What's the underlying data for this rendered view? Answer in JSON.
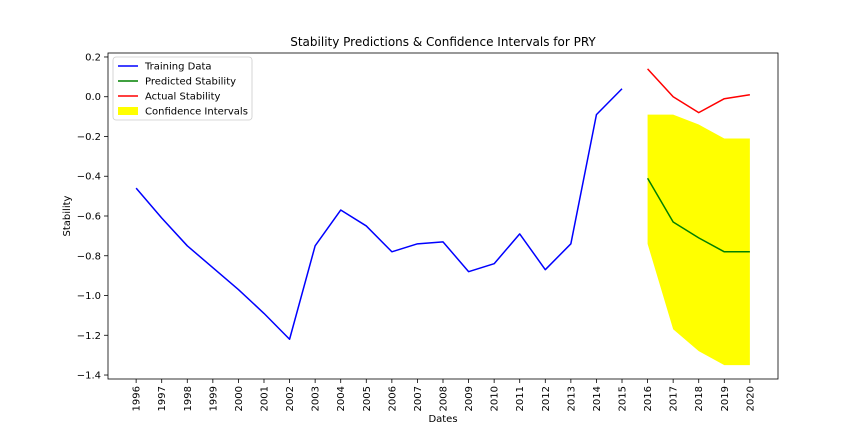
{
  "chart_data": {
    "type": "line",
    "title": "Stability Predictions & Confidence Intervals for PRY",
    "xlabel": "Dates",
    "ylabel": "Stability",
    "xlim": [
      1994.9,
      2021.1
    ],
    "ylim": [
      -1.42,
      0.22
    ],
    "x_ticks": [
      1996,
      1997,
      1998,
      1999,
      2000,
      2001,
      2002,
      2003,
      2004,
      2005,
      2006,
      2007,
      2008,
      2009,
      2010,
      2011,
      2012,
      2013,
      2014,
      2015,
      2016,
      2017,
      2018,
      2019,
      2020
    ],
    "y_ticks": [
      0.2,
      0.0,
      -0.2,
      -0.4,
      -0.6,
      -0.8,
      -1.0,
      -1.2,
      -1.4
    ],
    "y_tick_labels": [
      "0.2",
      "0.0",
      "−0.2",
      "−0.4",
      "−0.6",
      "−0.8",
      "−1.0",
      "−1.2",
      "−1.4"
    ],
    "grid": false,
    "legend_position": "upper-left",
    "series": [
      {
        "name": "Training Data",
        "color": "#0000ff",
        "x": [
          1996,
          1997,
          1998,
          1999,
          2000,
          2001,
          2002,
          2003,
          2004,
          2005,
          2006,
          2007,
          2008,
          2009,
          2010,
          2011,
          2012,
          2013,
          2014,
          2015
        ],
        "y": [
          -0.46,
          -0.61,
          -0.75,
          -0.86,
          -0.97,
          -1.09,
          -1.22,
          -0.75,
          -0.57,
          -0.65,
          -0.78,
          -0.74,
          -0.73,
          -0.88,
          -0.84,
          -0.69,
          -0.87,
          -0.74,
          -0.09,
          0.04
        ]
      },
      {
        "name": "Predicted Stability",
        "color": "#008000",
        "x": [
          2016,
          2017,
          2018,
          2019,
          2020
        ],
        "y": [
          -0.41,
          -0.63,
          -0.71,
          -0.78,
          -0.78
        ]
      },
      {
        "name": "Actual Stability",
        "color": "#ff0000",
        "x": [
          2016,
          2017,
          2018,
          2019,
          2020
        ],
        "y": [
          0.14,
          0.0,
          -0.08,
          -0.01,
          0.01
        ]
      }
    ],
    "confidence_interval": {
      "name": "Confidence Intervals",
      "color": "#ffff00",
      "x": [
        2016,
        2017,
        2018,
        2019,
        2020
      ],
      "lower": [
        -0.74,
        -1.17,
        -1.28,
        -1.35,
        -1.35
      ],
      "upper": [
        -0.09,
        -0.09,
        -0.14,
        -0.21,
        -0.21
      ]
    }
  }
}
